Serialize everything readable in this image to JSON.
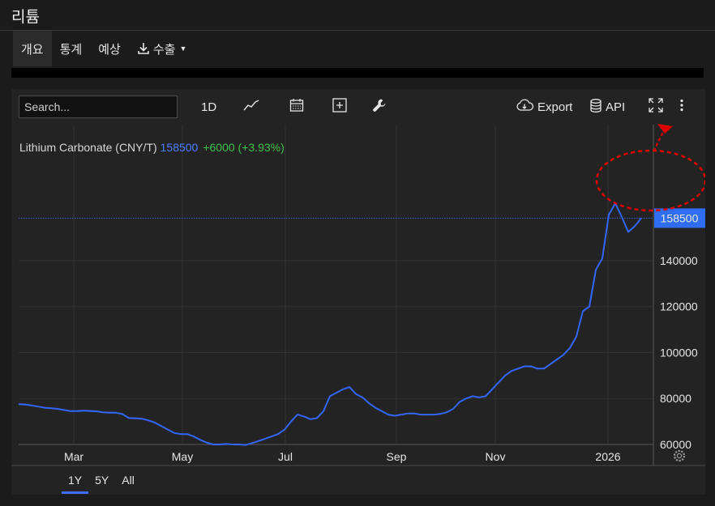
{
  "app": {
    "title": "리튬"
  },
  "tabs": [
    {
      "label": "개요"
    },
    {
      "label": "통계"
    },
    {
      "label": "예상"
    },
    {
      "label": "수출"
    }
  ],
  "toolbar": {
    "search_placeholder": "Search...",
    "interval": "1D",
    "export_label": "Export",
    "api_label": "API"
  },
  "legend": {
    "name": "Lithium Carbonate (CNY/T)",
    "price": "158500",
    "change": "+6000 (+3.93%)"
  },
  "colors": {
    "line": "#3366ff",
    "positive": "#3fc24b",
    "annotation": "#e00000"
  },
  "chart_data": {
    "type": "line",
    "x_tick_labels": [
      "Mar",
      "May",
      "Jul",
      "Sep",
      "Nov",
      "2026"
    ],
    "y_tick_labels": [
      "60000",
      "80000",
      "100000",
      "120000",
      "140000"
    ],
    "ylim": [
      45000,
      170000
    ],
    "last_value": 158500,
    "last_value_label": "158500",
    "grid": true,
    "series": [
      {
        "values": [
          77500,
          77400,
          77000,
          76500,
          76000,
          75800,
          75500,
          75000,
          74500,
          74500,
          74700,
          74600,
          74400,
          74000,
          73800,
          73800,
          73200,
          71500,
          71400,
          71200,
          70500,
          69500,
          68000,
          66500,
          65000,
          64500,
          64500,
          63500,
          62000,
          60800,
          60000,
          60000,
          60200,
          60000,
          60000,
          59800,
          60600,
          61500,
          62500,
          63500,
          64500,
          66500,
          70000,
          73000,
          72200,
          71000,
          71500,
          74500,
          81000,
          82500,
          84000,
          85000,
          82000,
          80500,
          78000,
          76000,
          74500,
          73000,
          72500,
          73000,
          73500,
          73500,
          73000,
          73000,
          73000,
          73300,
          74000,
          75500,
          78500,
          80000,
          81000,
          80500,
          81000,
          84000,
          87000,
          90000,
          92000,
          93000,
          94000,
          94000,
          93000,
          93000,
          95000,
          97000,
          99000,
          102000,
          107000,
          118000,
          120000,
          136000,
          141000,
          160000,
          165000,
          159000,
          152500,
          155000,
          158500
        ]
      }
    ]
  }
}
